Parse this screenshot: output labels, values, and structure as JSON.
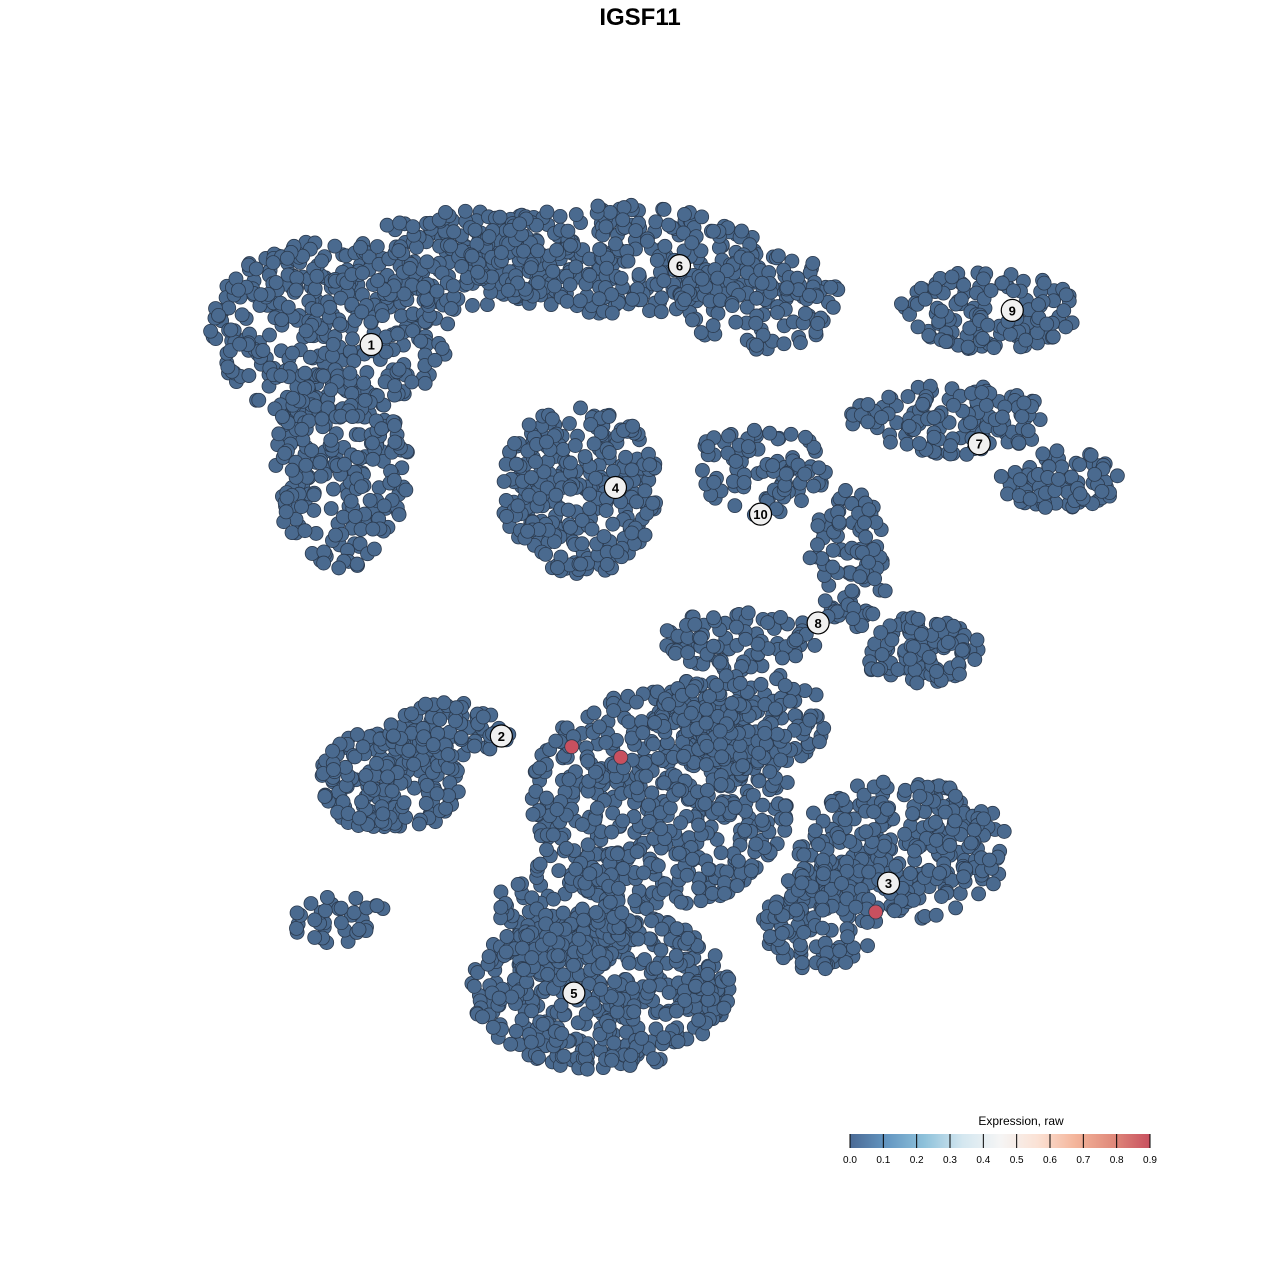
{
  "chart_data": {
    "type": "scatter",
    "title": "IGSF11",
    "xlabel": "",
    "ylabel": "",
    "xlim": [
      -45,
      45
    ],
    "ylim": [
      -45,
      45
    ],
    "grid": false,
    "axes_visible": false,
    "point_color_default": "#4a6a8f",
    "cluster_labels": [
      {
        "label": "1",
        "x": -25.2,
        "y": 27.7
      },
      {
        "label": "6",
        "x": 3.7,
        "y": 35.1
      },
      {
        "label": "9",
        "x": 34.9,
        "y": 30.9
      },
      {
        "label": "7",
        "x": 31.8,
        "y": 18.4
      },
      {
        "label": "4",
        "x": -2.3,
        "y": 14.3
      },
      {
        "label": "10",
        "x": 11.3,
        "y": 11.8
      },
      {
        "label": "8",
        "x": 16.7,
        "y": 1.6
      },
      {
        "label": "2",
        "x": -13.0,
        "y": -9.0
      },
      {
        "label": "3",
        "x": 23.3,
        "y": -22.8
      },
      {
        "label": "5",
        "x": -6.2,
        "y": -33.1
      }
    ],
    "expressing_points": [
      {
        "x": -6.4,
        "y": -10.0,
        "value": 0.9
      },
      {
        "x": -1.8,
        "y": -11.0,
        "value": 0.9
      },
      {
        "x": 22.1,
        "y": -25.5,
        "value": 0.9
      }
    ],
    "default_value": 0.0,
    "legend": {
      "title": "Expression, raw",
      "position": "bottom-right",
      "range": [
        0.0,
        0.9
      ],
      "ticks": [
        "0.0",
        "0.1",
        "0.2",
        "0.3",
        "0.4",
        "0.5",
        "0.6",
        "0.7",
        "0.8",
        "0.9"
      ],
      "colors": [
        "#4a6a95",
        "#6497c2",
        "#8fc2db",
        "#d4e7f0",
        "#f5f5f5",
        "#fbe2d5",
        "#f4b59b",
        "#e08a7b",
        "#c8505f"
      ]
    }
  }
}
